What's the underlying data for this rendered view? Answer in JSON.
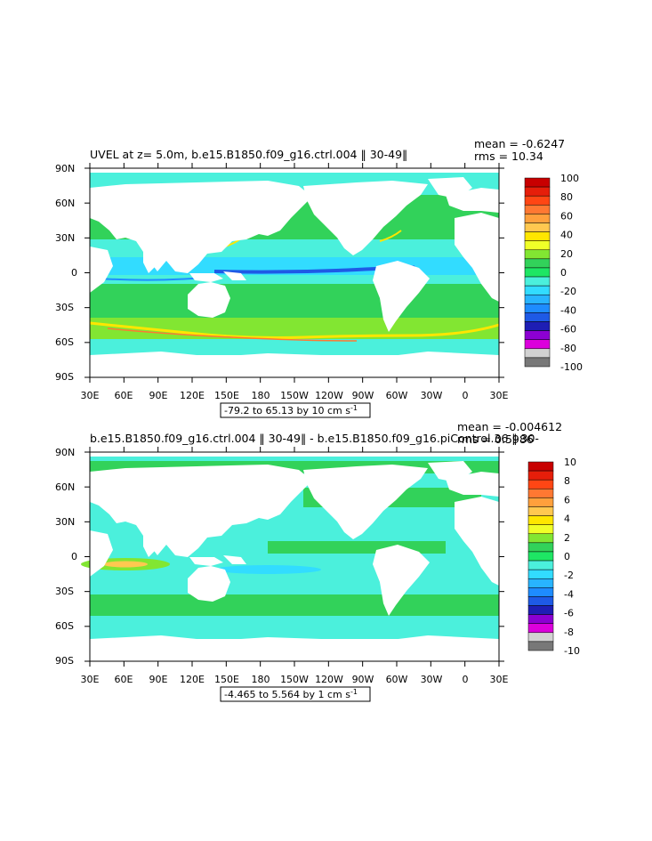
{
  "panels": [
    {
      "title": "UVEL at z=    5.0m, b.e15.B1850.f09_g16.ctrl.004 ‖ 30-49‖",
      "mean_text": "mean = -0.6247",
      "rms_text": "rms = 10.34",
      "range_text": "-79.2 to 65.13 by 10 cm s",
      "range_superscript": "-1",
      "x_ticks": [
        "30E",
        "60E",
        "90E",
        "120E",
        "150E",
        "180",
        "150W",
        "120W",
        "90W",
        "60W",
        "30W",
        "0",
        "30E"
      ],
      "y_ticks": [
        "90N",
        "60N",
        "30N",
        "0",
        "30S",
        "60S",
        "90S"
      ],
      "colorbar": {
        "labels": [
          "100",
          "80",
          "60",
          "40",
          "20",
          "0",
          "-20",
          "-40",
          "-60",
          "-80",
          "-100"
        ],
        "colors": [
          "#c80000",
          "#e61e0a",
          "#ff4614",
          "#ff7832",
          "#ffa03c",
          "#ffc850",
          "#ffe600",
          "#f0ff28",
          "#82e632",
          "#32d25a",
          "#1ee664",
          "#4bf0dc",
          "#32dcff",
          "#28b4ff",
          "#1e8cff",
          "#1e5ae6",
          "#1e1eb4",
          "#8c00d2",
          "#dc00dc",
          "#d2d2d2",
          "#787878"
        ]
      }
    },
    {
      "title": "b.e15.B1850.f09_g16.ctrl.004 ‖ 30-49‖  - b.e15.B1850.f09_g16.piControl.36 ‖ 30-",
      "mean_text": "mean = -0.004612",
      "rms_text": "rms = 0.5986",
      "range_text": "-4.465 to 5.564 by 1 cm s",
      "range_superscript": "-1",
      "x_ticks": [
        "30E",
        "60E",
        "90E",
        "120E",
        "150E",
        "180",
        "150W",
        "120W",
        "90W",
        "60W",
        "30W",
        "0",
        "30E"
      ],
      "y_ticks": [
        "90N",
        "60N",
        "30N",
        "0",
        "30S",
        "60S",
        "90S"
      ],
      "colorbar": {
        "labels": [
          "10",
          "8",
          "6",
          "4",
          "2",
          "0",
          "-2",
          "-4",
          "-6",
          "-8",
          "-10"
        ],
        "colors": [
          "#c80000",
          "#e61e0a",
          "#ff4614",
          "#ff7832",
          "#ffa03c",
          "#ffc850",
          "#ffe600",
          "#f0ff28",
          "#82e632",
          "#32d25a",
          "#1ee664",
          "#4bf0dc",
          "#32dcff",
          "#28b4ff",
          "#1e8cff",
          "#1e5ae6",
          "#1e1eb4",
          "#8c00d2",
          "#dc00dc",
          "#d2d2d2",
          "#787878"
        ]
      }
    }
  ],
  "map_colors": {
    "ocean_base": "#4bf0dc",
    "land": "#ffffff",
    "green_band": "#32d25a",
    "light_green": "#82e632",
    "yellow": "#ffe600",
    "orange": "#ff7832",
    "blue": "#1e8cff",
    "dark_blue": "#1e5ae6",
    "sky": "#32dcff"
  }
}
